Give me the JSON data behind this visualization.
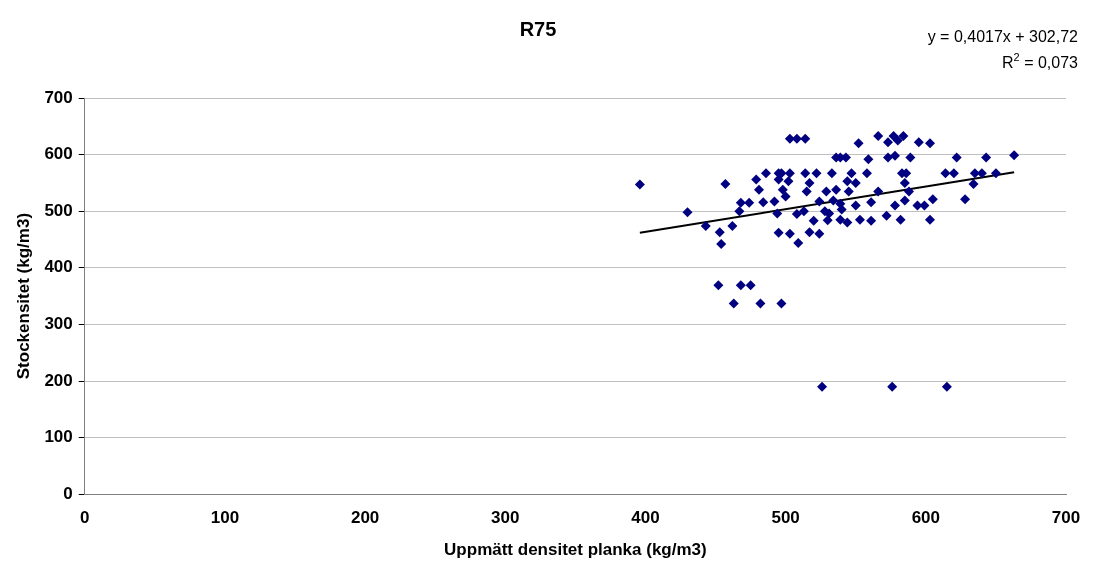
{
  "chart_data": {
    "type": "scatter",
    "title": "R75",
    "xlabel": "Uppmätt densitet planka (kg/m3)",
    "ylabel": "Stockensitet (kg/m3)",
    "annotations": [
      "y = 0,4017x + 302,72",
      "R$^{2}$ = 0,073"
    ],
    "xlim": [
      0,
      700
    ],
    "xticks": [
      0,
      100,
      200,
      300,
      400,
      500,
      600,
      700
    ],
    "ylim": [
      0,
      700
    ],
    "yticks": [
      0,
      100,
      200,
      300,
      400,
      500,
      600,
      700
    ],
    "grid": "y",
    "legend": false,
    "marker": "diamond",
    "series": [
      {
        "color": "#000080",
        "x": [
          503,
          508,
          514,
          552,
          566,
          577,
          584,
          573,
          580,
          595,
          603,
          536,
          539,
          543,
          559,
          573,
          578,
          589,
          622,
          643,
          663,
          486,
          495,
          497,
          503,
          514,
          522,
          533,
          547,
          558,
          583,
          586,
          614,
          620,
          635,
          640,
          650,
          457,
          479,
          495,
          502,
          517,
          544,
          550,
          585,
          634,
          481,
          498,
          515,
          529,
          536,
          545,
          566,
          588,
          468,
          474,
          484,
          492,
          500,
          524,
          534,
          539,
          550,
          561,
          578,
          585,
          594,
          599,
          605,
          628,
          430,
          467,
          494,
          508,
          513,
          528,
          531,
          540,
          443,
          462,
          520,
          530,
          539,
          544,
          553,
          561,
          572,
          582,
          603,
          453,
          454,
          495,
          503,
          509,
          517,
          524,
          452,
          468,
          475,
          463,
          482,
          497,
          396,
          526,
          576,
          615
        ],
        "values": [
          628,
          628,
          628,
          620,
          633,
          633,
          633,
          622,
          625,
          622,
          620,
          595,
          595,
          595,
          592,
          595,
          598,
          595,
          595,
          595,
          599,
          567,
          567,
          567,
          567,
          567,
          567,
          567,
          567,
          567,
          567,
          567,
          567,
          567,
          567,
          567,
          567,
          548,
          556,
          556,
          553,
          550,
          553,
          550,
          550,
          548,
          538,
          538,
          535,
          535,
          538,
          535,
          535,
          535,
          515,
          515,
          516,
          517,
          526,
          517,
          519,
          513,
          510,
          516,
          510,
          519,
          510,
          510,
          521,
          521,
          498,
          500,
          496,
          495,
          500,
          500,
          496,
          503,
          474,
          474,
          483,
          484,
          485,
          480,
          485,
          483,
          492,
          485,
          485,
          463,
          442,
          462,
          460,
          444,
          463,
          460,
          369,
          369,
          369,
          337,
          337,
          337,
          547,
          190,
          190,
          190
        ]
      },
      {
        "type": "line",
        "color": "#000000",
        "marker": "none",
        "x": [
          396,
          663
        ],
        "values": [
          461.8,
          569.0
        ]
      }
    ]
  }
}
